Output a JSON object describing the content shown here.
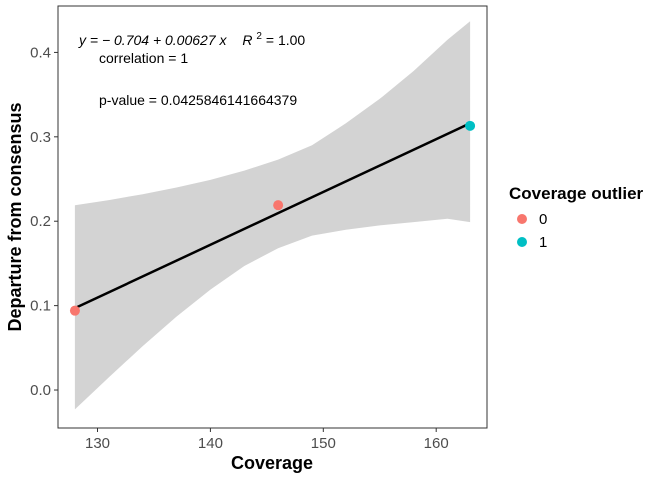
{
  "chart_data": {
    "type": "scatter",
    "xlabel": "Coverage",
    "ylabel": "Departure from consensus",
    "xlim": [
      126.5,
      164.5
    ],
    "ylim": [
      -0.045,
      0.455
    ],
    "x_ticks": [
      130,
      140,
      150,
      160
    ],
    "y_ticks": [
      0.0,
      0.1,
      0.2,
      0.3,
      0.4
    ],
    "x_tick_labels": [
      "130",
      "140",
      "150",
      "160"
    ],
    "y_tick_labels": [
      "0.0",
      "0.1",
      "0.2",
      "0.3",
      "0.4"
    ],
    "grid": false,
    "legend": {
      "title": "Coverage outlier",
      "position": "right",
      "entries": [
        {
          "label": "0",
          "color": "#F8766D"
        },
        {
          "label": "1",
          "color": "#00BFC4"
        }
      ]
    },
    "points": [
      {
        "x": 128,
        "y": 0.094,
        "group": "0"
      },
      {
        "x": 146,
        "y": 0.219,
        "group": "0"
      },
      {
        "x": 163,
        "y": 0.313,
        "group": "1"
      }
    ],
    "fit_line": {
      "x": [
        128,
        163
      ],
      "y": [
        0.097,
        0.316
      ],
      "color": "#000000"
    },
    "confidence_band": {
      "x": [
        128,
        131,
        134,
        137,
        140,
        143,
        146,
        149,
        152,
        155,
        158,
        161,
        163
      ],
      "upper": [
        0.219,
        0.225,
        0.232,
        0.24,
        0.249,
        0.26,
        0.273,
        0.29,
        0.316,
        0.345,
        0.378,
        0.415,
        0.437
      ],
      "lower": [
        -0.023,
        0.015,
        0.052,
        0.087,
        0.119,
        0.147,
        0.168,
        0.183,
        0.19,
        0.195,
        0.199,
        0.203,
        0.199
      ],
      "color": "#d3d3d3"
    },
    "annotations": {
      "equation_prefix": "y = − 0.704 + 0.00627 x",
      "r2_label": "R",
      "r2_sup": "2",
      "r2_value": " = 1.00",
      "correlation": "correlation = 1",
      "pvalue": "p-value = 0.0425846141664379"
    }
  }
}
